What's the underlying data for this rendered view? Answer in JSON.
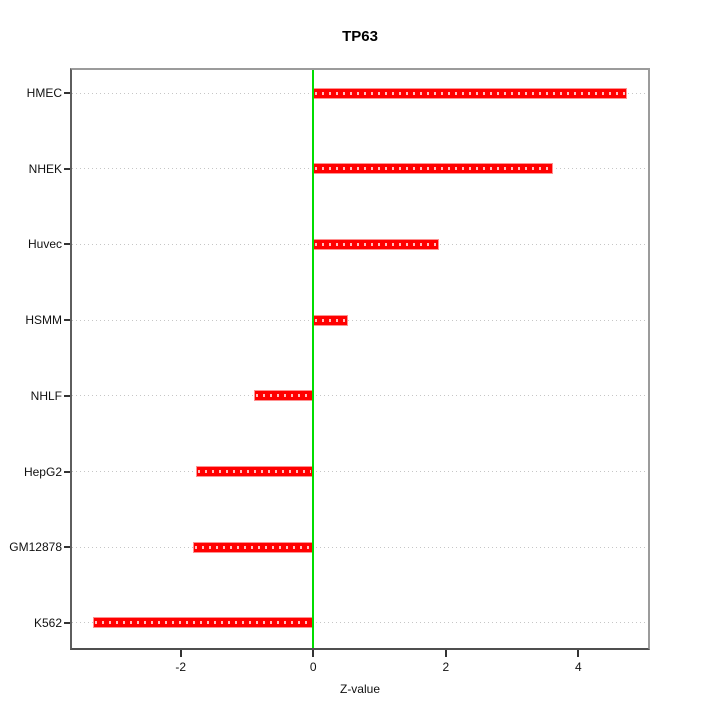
{
  "chart": {
    "title": "TP63",
    "xlabel": "Z-value"
  },
  "chart_data": {
    "type": "bar",
    "orientation": "horizontal",
    "title": "TP63",
    "xlabel": "Z-value",
    "ylabel": "",
    "categories": [
      "HMEC",
      "NHEK",
      "Huvec",
      "HSMM",
      "NHLF",
      "HepG2",
      "GM12878",
      "K562"
    ],
    "values": [
      4.74,
      3.62,
      1.89,
      0.53,
      -0.89,
      -1.77,
      -1.81,
      -3.32
    ],
    "xlim": [
      -3.64,
      5.05
    ],
    "x_ticks": [
      -2,
      0,
      2,
      4
    ],
    "x_tick_labels": [
      "-2",
      "0",
      "2",
      "4"
    ],
    "grid": "horizontal-dotted",
    "zero_line_value": 0,
    "legend": "none",
    "colors": {
      "bar": "#ff0000",
      "bar_border": "#ff9090",
      "zero_line": "#00dd00",
      "grid": "#c6c6c6",
      "box_border": "#8c8c8c",
      "tick": "#333333",
      "text": "#111111",
      "background": "#ffffff"
    }
  }
}
